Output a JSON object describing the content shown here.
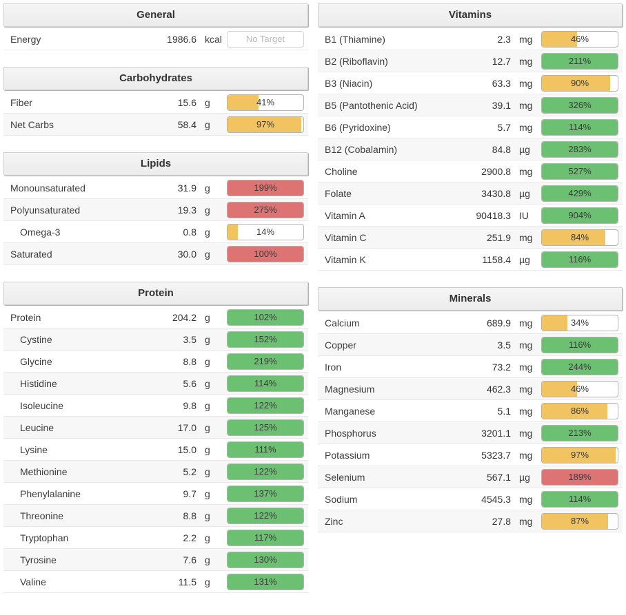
{
  "colors": {
    "green": "#6cc071",
    "yellow": "#f2c361",
    "red": "#de7373",
    "row-alt": "#f7f7f7"
  },
  "sections": [
    {
      "id": "general",
      "column": "left",
      "title": "General",
      "rows": [
        {
          "label": "Energy",
          "value": "1986.6",
          "unit": "kcal",
          "bar_text": "No Target",
          "fill": 0,
          "color": "none",
          "indent": false
        }
      ]
    },
    {
      "id": "carbohydrates",
      "column": "left",
      "title": "Carbohydrates",
      "rows": [
        {
          "label": "Fiber",
          "value": "15.6",
          "unit": "g",
          "bar_text": "41%",
          "fill": 41,
          "color": "yellow",
          "indent": false
        },
        {
          "label": "Net Carbs",
          "value": "58.4",
          "unit": "g",
          "bar_text": "97%",
          "fill": 97,
          "color": "yellow",
          "indent": false
        }
      ]
    },
    {
      "id": "lipids",
      "column": "left",
      "title": "Lipids",
      "rows": [
        {
          "label": "Monounsaturated",
          "value": "31.9",
          "unit": "g",
          "bar_text": "199%",
          "fill": 100,
          "color": "red",
          "indent": false
        },
        {
          "label": "Polyunsaturated",
          "value": "19.3",
          "unit": "g",
          "bar_text": "275%",
          "fill": 100,
          "color": "red",
          "indent": false
        },
        {
          "label": "Omega-3",
          "value": "0.8",
          "unit": "g",
          "bar_text": "14%",
          "fill": 14,
          "color": "yellow",
          "indent": true
        },
        {
          "label": "Saturated",
          "value": "30.0",
          "unit": "g",
          "bar_text": "100%",
          "fill": 100,
          "color": "red",
          "indent": false
        }
      ]
    },
    {
      "id": "protein",
      "column": "left",
      "title": "Protein",
      "rows": [
        {
          "label": "Protein",
          "value": "204.2",
          "unit": "g",
          "bar_text": "102%",
          "fill": 100,
          "color": "green",
          "indent": false
        },
        {
          "label": "Cystine",
          "value": "3.5",
          "unit": "g",
          "bar_text": "152%",
          "fill": 100,
          "color": "green",
          "indent": true
        },
        {
          "label": "Glycine",
          "value": "8.8",
          "unit": "g",
          "bar_text": "219%",
          "fill": 100,
          "color": "green",
          "indent": true
        },
        {
          "label": "Histidine",
          "value": "5.6",
          "unit": "g",
          "bar_text": "114%",
          "fill": 100,
          "color": "green",
          "indent": true
        },
        {
          "label": "Isoleucine",
          "value": "9.8",
          "unit": "g",
          "bar_text": "122%",
          "fill": 100,
          "color": "green",
          "indent": true
        },
        {
          "label": "Leucine",
          "value": "17.0",
          "unit": "g",
          "bar_text": "125%",
          "fill": 100,
          "color": "green",
          "indent": true
        },
        {
          "label": "Lysine",
          "value": "15.0",
          "unit": "g",
          "bar_text": "111%",
          "fill": 100,
          "color": "green",
          "indent": true
        },
        {
          "label": "Methionine",
          "value": "5.2",
          "unit": "g",
          "bar_text": "122%",
          "fill": 100,
          "color": "green",
          "indent": true
        },
        {
          "label": "Phenylalanine",
          "value": "9.7",
          "unit": "g",
          "bar_text": "137%",
          "fill": 100,
          "color": "green",
          "indent": true
        },
        {
          "label": "Threonine",
          "value": "8.8",
          "unit": "g",
          "bar_text": "122%",
          "fill": 100,
          "color": "green",
          "indent": true
        },
        {
          "label": "Tryptophan",
          "value": "2.2",
          "unit": "g",
          "bar_text": "117%",
          "fill": 100,
          "color": "green",
          "indent": true
        },
        {
          "label": "Tyrosine",
          "value": "7.6",
          "unit": "g",
          "bar_text": "130%",
          "fill": 100,
          "color": "green",
          "indent": true
        },
        {
          "label": "Valine",
          "value": "11.5",
          "unit": "g",
          "bar_text": "131%",
          "fill": 100,
          "color": "green",
          "indent": true
        }
      ]
    },
    {
      "id": "vitamins",
      "column": "right",
      "title": "Vitamins",
      "rows": [
        {
          "label": "B1 (Thiamine)",
          "value": "2.3",
          "unit": "mg",
          "bar_text": "46%",
          "fill": 46,
          "color": "yellow",
          "indent": false
        },
        {
          "label": "B2 (Riboflavin)",
          "value": "12.7",
          "unit": "mg",
          "bar_text": "211%",
          "fill": 100,
          "color": "green",
          "indent": false
        },
        {
          "label": "B3 (Niacin)",
          "value": "63.3",
          "unit": "mg",
          "bar_text": "90%",
          "fill": 90,
          "color": "yellow",
          "indent": false
        },
        {
          "label": "B5 (Pantothenic Acid)",
          "value": "39.1",
          "unit": "mg",
          "bar_text": "326%",
          "fill": 100,
          "color": "green",
          "indent": false
        },
        {
          "label": "B6 (Pyridoxine)",
          "value": "5.7",
          "unit": "mg",
          "bar_text": "114%",
          "fill": 100,
          "color": "green",
          "indent": false
        },
        {
          "label": "B12 (Cobalamin)",
          "value": "84.8",
          "unit": "µg",
          "bar_text": "283%",
          "fill": 100,
          "color": "green",
          "indent": false
        },
        {
          "label": "Choline",
          "value": "2900.8",
          "unit": "mg",
          "bar_text": "527%",
          "fill": 100,
          "color": "green",
          "indent": false
        },
        {
          "label": "Folate",
          "value": "3430.8",
          "unit": "µg",
          "bar_text": "429%",
          "fill": 100,
          "color": "green",
          "indent": false
        },
        {
          "label": "Vitamin A",
          "value": "90418.3",
          "unit": "IU",
          "bar_text": "904%",
          "fill": 100,
          "color": "green",
          "indent": false
        },
        {
          "label": "Vitamin C",
          "value": "251.9",
          "unit": "mg",
          "bar_text": "84%",
          "fill": 84,
          "color": "yellow",
          "indent": false
        },
        {
          "label": "Vitamin K",
          "value": "1158.4",
          "unit": "µg",
          "bar_text": "116%",
          "fill": 100,
          "color": "green",
          "indent": false
        }
      ]
    },
    {
      "id": "minerals",
      "column": "right",
      "title": "Minerals",
      "rows": [
        {
          "label": "Calcium",
          "value": "689.9",
          "unit": "mg",
          "bar_text": "34%",
          "fill": 34,
          "color": "yellow",
          "indent": false
        },
        {
          "label": "Copper",
          "value": "3.5",
          "unit": "mg",
          "bar_text": "116%",
          "fill": 100,
          "color": "green",
          "indent": false
        },
        {
          "label": "Iron",
          "value": "73.2",
          "unit": "mg",
          "bar_text": "244%",
          "fill": 100,
          "color": "green",
          "indent": false
        },
        {
          "label": "Magnesium",
          "value": "462.3",
          "unit": "mg",
          "bar_text": "46%",
          "fill": 46,
          "color": "yellow",
          "indent": false
        },
        {
          "label": "Manganese",
          "value": "5.1",
          "unit": "mg",
          "bar_text": "86%",
          "fill": 86,
          "color": "yellow",
          "indent": false
        },
        {
          "label": "Phosphorus",
          "value": "3201.1",
          "unit": "mg",
          "bar_text": "213%",
          "fill": 100,
          "color": "green",
          "indent": false
        },
        {
          "label": "Potassium",
          "value": "5323.7",
          "unit": "mg",
          "bar_text": "97%",
          "fill": 97,
          "color": "yellow",
          "indent": false
        },
        {
          "label": "Selenium",
          "value": "567.1",
          "unit": "µg",
          "bar_text": "189%",
          "fill": 100,
          "color": "red",
          "indent": false
        },
        {
          "label": "Sodium",
          "value": "4545.3",
          "unit": "mg",
          "bar_text": "114%",
          "fill": 100,
          "color": "green",
          "indent": false
        },
        {
          "label": "Zinc",
          "value": "27.8",
          "unit": "mg",
          "bar_text": "87%",
          "fill": 87,
          "color": "yellow",
          "indent": false
        }
      ]
    }
  ]
}
